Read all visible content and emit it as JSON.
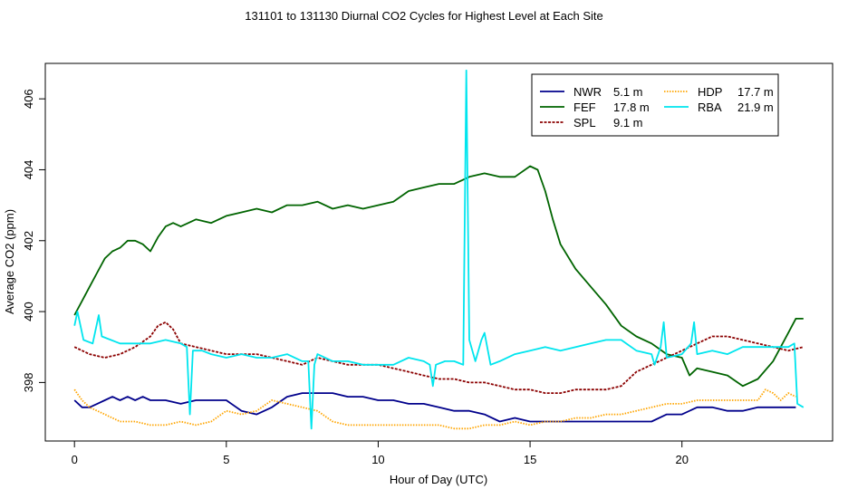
{
  "chart_data": {
    "type": "line",
    "title": "131101  to  131130 Diurnal CO2 Cycles for Highest Level at Each Site",
    "xlabel": "Hour of Day (UTC)",
    "ylabel": "Average CO2 (ppm)",
    "xlim": [
      -0.96,
      24.96
    ],
    "ylim": [
      396.35,
      407.0
    ],
    "xticks": [
      0,
      5,
      10,
      15,
      20
    ],
    "yticks": [
      398,
      400,
      402,
      404,
      406
    ],
    "grid": false,
    "legend_position": "top-right",
    "legend": [
      {
        "site": "NWR",
        "height": "5.1 m"
      },
      {
        "site": "FEF",
        "height": "17.8 m"
      },
      {
        "site": "SPL",
        "height": "9.1 m"
      },
      {
        "site": "HDP",
        "height": "17.7 m"
      },
      {
        "site": "RBA",
        "height": "21.9 m"
      }
    ],
    "series": [
      {
        "name": "NWR",
        "color": "#00008b",
        "dash": "solid",
        "points": [
          [
            0,
            397.5
          ],
          [
            0.25,
            397.3
          ],
          [
            0.5,
            397.3
          ],
          [
            0.75,
            397.4
          ],
          [
            1.0,
            397.5
          ],
          [
            1.25,
            397.6
          ],
          [
            1.5,
            397.5
          ],
          [
            1.75,
            397.6
          ],
          [
            2.0,
            397.5
          ],
          [
            2.25,
            397.6
          ],
          [
            2.5,
            397.5
          ],
          [
            3.0,
            397.5
          ],
          [
            3.5,
            397.4
          ],
          [
            4.0,
            397.5
          ],
          [
            4.5,
            397.5
          ],
          [
            5.0,
            397.5
          ],
          [
            5.5,
            397.2
          ],
          [
            6.0,
            397.1
          ],
          [
            6.5,
            397.3
          ],
          [
            7.0,
            397.6
          ],
          [
            7.5,
            397.7
          ],
          [
            8.0,
            397.7
          ],
          [
            8.5,
            397.7
          ],
          [
            9.0,
            397.6
          ],
          [
            9.5,
            397.6
          ],
          [
            10.0,
            397.5
          ],
          [
            10.5,
            397.5
          ],
          [
            11.0,
            397.4
          ],
          [
            11.5,
            397.4
          ],
          [
            12.0,
            397.3
          ],
          [
            12.5,
            397.2
          ],
          [
            13.0,
            397.2
          ],
          [
            13.5,
            397.1
          ],
          [
            14.0,
            396.9
          ],
          [
            14.5,
            397.0
          ],
          [
            15.0,
            396.9
          ],
          [
            15.5,
            396.9
          ],
          [
            16.0,
            396.9
          ],
          [
            16.5,
            396.9
          ],
          [
            17.0,
            396.9
          ],
          [
            17.5,
            396.9
          ],
          [
            18.0,
            396.9
          ],
          [
            18.5,
            396.9
          ],
          [
            19.0,
            396.9
          ],
          [
            19.5,
            397.1
          ],
          [
            20.0,
            397.1
          ],
          [
            20.5,
            397.3
          ],
          [
            21.0,
            397.3
          ],
          [
            21.5,
            397.2
          ],
          [
            22.0,
            397.2
          ],
          [
            22.5,
            397.3
          ],
          [
            23.0,
            397.3
          ],
          [
            23.5,
            397.3
          ],
          [
            23.75,
            397.3
          ]
        ]
      },
      {
        "name": "FEF",
        "color": "#006400",
        "dash": "solid",
        "points": [
          [
            0,
            399.9
          ],
          [
            0.25,
            400.3
          ],
          [
            0.5,
            400.7
          ],
          [
            0.75,
            401.1
          ],
          [
            1.0,
            401.5
          ],
          [
            1.25,
            401.7
          ],
          [
            1.5,
            401.8
          ],
          [
            1.75,
            402.0
          ],
          [
            2.0,
            402.0
          ],
          [
            2.25,
            401.9
          ],
          [
            2.5,
            401.7
          ],
          [
            2.75,
            402.1
          ],
          [
            3.0,
            402.4
          ],
          [
            3.25,
            402.5
          ],
          [
            3.5,
            402.4
          ],
          [
            4.0,
            402.6
          ],
          [
            4.5,
            402.5
          ],
          [
            5.0,
            402.7
          ],
          [
            5.5,
            402.8
          ],
          [
            6.0,
            402.9
          ],
          [
            6.5,
            402.8
          ],
          [
            7.0,
            403.0
          ],
          [
            7.5,
            403.0
          ],
          [
            8.0,
            403.1
          ],
          [
            8.5,
            402.9
          ],
          [
            9.0,
            403.0
          ],
          [
            9.5,
            402.9
          ],
          [
            10.0,
            403.0
          ],
          [
            10.5,
            403.1
          ],
          [
            11.0,
            403.4
          ],
          [
            11.5,
            403.5
          ],
          [
            12.0,
            403.6
          ],
          [
            12.5,
            403.6
          ],
          [
            13.0,
            403.8
          ],
          [
            13.5,
            403.9
          ],
          [
            14.0,
            403.8
          ],
          [
            14.5,
            403.8
          ],
          [
            15.0,
            404.1
          ],
          [
            15.25,
            404.0
          ],
          [
            15.5,
            403.4
          ],
          [
            15.75,
            402.6
          ],
          [
            16.0,
            401.9
          ],
          [
            16.5,
            401.2
          ],
          [
            17.0,
            400.7
          ],
          [
            17.5,
            400.2
          ],
          [
            18.0,
            399.6
          ],
          [
            18.5,
            399.3
          ],
          [
            19.0,
            399.1
          ],
          [
            19.5,
            398.8
          ],
          [
            20.0,
            398.7
          ],
          [
            20.25,
            398.2
          ],
          [
            20.5,
            398.4
          ],
          [
            21.0,
            398.3
          ],
          [
            21.5,
            398.2
          ],
          [
            22.0,
            397.9
          ],
          [
            22.5,
            398.1
          ],
          [
            23.0,
            398.6
          ],
          [
            23.5,
            399.4
          ],
          [
            23.75,
            399.8
          ],
          [
            24.0,
            399.8
          ]
        ]
      },
      {
        "name": "SPL",
        "color": "#8b0000",
        "dash": "dashed",
        "points": [
          [
            0,
            399.0
          ],
          [
            0.5,
            398.8
          ],
          [
            1.0,
            398.7
          ],
          [
            1.5,
            398.8
          ],
          [
            2.0,
            399.0
          ],
          [
            2.5,
            399.3
          ],
          [
            2.75,
            399.6
          ],
          [
            3.0,
            399.7
          ],
          [
            3.25,
            399.5
          ],
          [
            3.5,
            399.1
          ],
          [
            4.0,
            399.0
          ],
          [
            4.5,
            398.9
          ],
          [
            5.0,
            398.8
          ],
          [
            5.5,
            398.8
          ],
          [
            6.0,
            398.8
          ],
          [
            6.5,
            398.7
          ],
          [
            7.0,
            398.6
          ],
          [
            7.5,
            398.5
          ],
          [
            8.0,
            398.7
          ],
          [
            8.5,
            398.6
          ],
          [
            9.0,
            398.5
          ],
          [
            9.5,
            398.5
          ],
          [
            10.0,
            398.5
          ],
          [
            10.5,
            398.4
          ],
          [
            11.0,
            398.3
          ],
          [
            11.5,
            398.2
          ],
          [
            12.0,
            398.1
          ],
          [
            12.5,
            398.1
          ],
          [
            13.0,
            398.0
          ],
          [
            13.5,
            398.0
          ],
          [
            14.0,
            397.9
          ],
          [
            14.5,
            397.8
          ],
          [
            15.0,
            397.8
          ],
          [
            15.5,
            397.7
          ],
          [
            16.0,
            397.7
          ],
          [
            16.5,
            397.8
          ],
          [
            17.0,
            397.8
          ],
          [
            17.5,
            397.8
          ],
          [
            18.0,
            397.9
          ],
          [
            18.5,
            398.3
          ],
          [
            19.0,
            398.5
          ],
          [
            19.5,
            398.7
          ],
          [
            20.0,
            398.9
          ],
          [
            20.5,
            399.1
          ],
          [
            21.0,
            399.3
          ],
          [
            21.5,
            399.3
          ],
          [
            22.0,
            399.2
          ],
          [
            22.5,
            399.1
          ],
          [
            23.0,
            399.0
          ],
          [
            23.5,
            398.9
          ],
          [
            24.0,
            399.0
          ]
        ]
      },
      {
        "name": "HDP",
        "color": "#ffa500",
        "dash": "dotted",
        "points": [
          [
            0,
            397.8
          ],
          [
            0.25,
            397.5
          ],
          [
            0.5,
            397.3
          ],
          [
            1.0,
            397.1
          ],
          [
            1.5,
            396.9
          ],
          [
            2.0,
            396.9
          ],
          [
            2.5,
            396.8
          ],
          [
            3.0,
            396.8
          ],
          [
            3.5,
            396.9
          ],
          [
            4.0,
            396.8
          ],
          [
            4.5,
            396.9
          ],
          [
            5.0,
            397.2
          ],
          [
            5.5,
            397.1
          ],
          [
            6.0,
            397.2
          ],
          [
            6.5,
            397.5
          ],
          [
            7.0,
            397.4
          ],
          [
            7.5,
            397.3
          ],
          [
            8.0,
            397.2
          ],
          [
            8.5,
            396.9
          ],
          [
            9.0,
            396.8
          ],
          [
            9.5,
            396.8
          ],
          [
            10.0,
            396.8
          ],
          [
            10.5,
            396.8
          ],
          [
            11.0,
            396.8
          ],
          [
            11.5,
            396.8
          ],
          [
            12.0,
            396.8
          ],
          [
            12.5,
            396.7
          ],
          [
            13.0,
            396.7
          ],
          [
            13.5,
            396.8
          ],
          [
            14.0,
            396.8
          ],
          [
            14.5,
            396.9
          ],
          [
            15.0,
            396.8
          ],
          [
            15.5,
            396.9
          ],
          [
            16.0,
            396.9
          ],
          [
            16.5,
            397.0
          ],
          [
            17.0,
            397.0
          ],
          [
            17.5,
            397.1
          ],
          [
            18.0,
            397.1
          ],
          [
            18.5,
            397.2
          ],
          [
            19.0,
            397.3
          ],
          [
            19.5,
            397.4
          ],
          [
            20.0,
            397.4
          ],
          [
            20.5,
            397.5
          ],
          [
            21.0,
            397.5
          ],
          [
            21.5,
            397.5
          ],
          [
            22.0,
            397.5
          ],
          [
            22.5,
            397.5
          ],
          [
            22.75,
            397.8
          ],
          [
            23.0,
            397.7
          ],
          [
            23.25,
            397.5
          ],
          [
            23.5,
            397.7
          ],
          [
            23.75,
            397.6
          ]
        ]
      },
      {
        "name": "RBA",
        "color": "#00e5ee",
        "dash": "solid",
        "points": [
          [
            0,
            399.6
          ],
          [
            0.1,
            400.0
          ],
          [
            0.3,
            399.2
          ],
          [
            0.6,
            399.1
          ],
          [
            0.8,
            399.9
          ],
          [
            0.9,
            399.3
          ],
          [
            1.2,
            399.2
          ],
          [
            1.5,
            399.1
          ],
          [
            2.0,
            399.1
          ],
          [
            2.5,
            399.1
          ],
          [
            3.0,
            399.2
          ],
          [
            3.5,
            399.1
          ],
          [
            3.7,
            399.0
          ],
          [
            3.8,
            397.1
          ],
          [
            3.9,
            398.9
          ],
          [
            4.2,
            398.9
          ],
          [
            4.5,
            398.8
          ],
          [
            5.0,
            398.7
          ],
          [
            5.5,
            398.8
          ],
          [
            6.0,
            398.7
          ],
          [
            6.5,
            398.7
          ],
          [
            7.0,
            398.8
          ],
          [
            7.5,
            398.6
          ],
          [
            7.7,
            398.6
          ],
          [
            7.8,
            396.7
          ],
          [
            7.9,
            398.5
          ],
          [
            8.0,
            398.8
          ],
          [
            8.5,
            398.6
          ],
          [
            9.0,
            398.6
          ],
          [
            9.5,
            398.5
          ],
          [
            10.0,
            398.5
          ],
          [
            10.5,
            398.5
          ],
          [
            11.0,
            398.7
          ],
          [
            11.5,
            398.6
          ],
          [
            11.7,
            398.5
          ],
          [
            11.8,
            397.9
          ],
          [
            11.9,
            398.5
          ],
          [
            12.2,
            398.6
          ],
          [
            12.5,
            398.6
          ],
          [
            12.8,
            398.5
          ],
          [
            12.9,
            406.8
          ],
          [
            13.0,
            399.2
          ],
          [
            13.2,
            398.6
          ],
          [
            13.4,
            399.2
          ],
          [
            13.5,
            399.4
          ],
          [
            13.7,
            398.5
          ],
          [
            14.0,
            398.6
          ],
          [
            14.5,
            398.8
          ],
          [
            15.0,
            398.9
          ],
          [
            15.5,
            399.0
          ],
          [
            16.0,
            398.9
          ],
          [
            16.5,
            399.0
          ],
          [
            17.0,
            399.1
          ],
          [
            17.5,
            399.2
          ],
          [
            18.0,
            399.2
          ],
          [
            18.5,
            398.9
          ],
          [
            19.0,
            398.8
          ],
          [
            19.1,
            398.5
          ],
          [
            19.3,
            399.0
          ],
          [
            19.4,
            399.7
          ],
          [
            19.5,
            398.7
          ],
          [
            20.0,
            398.8
          ],
          [
            20.3,
            399.1
          ],
          [
            20.4,
            399.7
          ],
          [
            20.5,
            398.8
          ],
          [
            21.0,
            398.9
          ],
          [
            21.5,
            398.8
          ],
          [
            22.0,
            399.0
          ],
          [
            22.5,
            399.0
          ],
          [
            23.0,
            399.0
          ],
          [
            23.5,
            399.0
          ],
          [
            23.7,
            399.1
          ],
          [
            23.8,
            397.4
          ],
          [
            24.0,
            397.3
          ]
        ]
      }
    ]
  }
}
